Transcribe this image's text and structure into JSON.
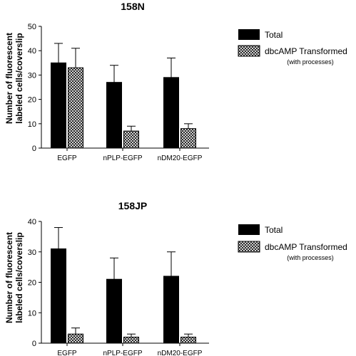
{
  "chart_data": [
    {
      "type": "bar",
      "title": "158N",
      "ylabel": "Number of fluorescent labeled cells/coverslip",
      "ylabel_lines": [
        "Number of fluorescent",
        "labeled cells/coverslip"
      ],
      "xlabel": "",
      "categories": [
        "EGFP",
        "nPLP-EGFP",
        "nDM20-EGFP"
      ],
      "ylim": [
        0,
        50
      ],
      "yticks": [
        0,
        10,
        20,
        30,
        40,
        50
      ],
      "series": [
        {
          "name": "Total",
          "values": [
            35,
            27,
            29
          ],
          "errors": [
            8,
            7,
            8
          ],
          "fill": "solid"
        },
        {
          "name": "dbcAMP Transformed",
          "values": [
            33,
            7,
            8
          ],
          "errors": [
            8,
            2,
            2
          ],
          "fill": "crosshatch"
        }
      ],
      "legend": {
        "position": "right",
        "note": "(with processes)"
      },
      "grid": false
    },
    {
      "type": "bar",
      "title": "158JP",
      "ylabel": "Number of fluorescent labeled cells/coverslip",
      "ylabel_lines": [
        "Number of fluorescent",
        "labeled cells/coverslip"
      ],
      "xlabel": "",
      "categories": [
        "EGFP",
        "nPLP-EGFP",
        "nDM20-EGFP"
      ],
      "ylim": [
        0,
        40
      ],
      "yticks": [
        0,
        10,
        20,
        30,
        40
      ],
      "series": [
        {
          "name": "Total",
          "values": [
            31,
            21,
            22
          ],
          "errors": [
            7,
            7,
            8
          ],
          "fill": "solid"
        },
        {
          "name": "dbcAMP Transformed",
          "values": [
            3,
            2,
            2
          ],
          "errors": [
            2,
            1,
            1
          ],
          "fill": "crosshatch"
        }
      ],
      "legend": {
        "position": "right",
        "note": "(with processes)"
      },
      "grid": false
    }
  ]
}
